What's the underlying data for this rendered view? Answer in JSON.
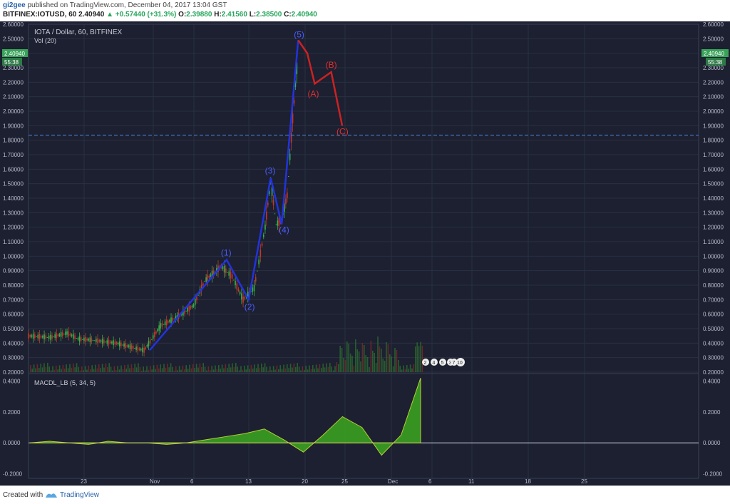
{
  "header": {
    "user": "gi2gee",
    "published": "published on TradingView.com, December 04, 2017 13:04 GST",
    "symbol": "BITFINEX:IOTUSD, 60",
    "price": "2.40940",
    "change": "+0.57440 (+31.3%)",
    "o_label": "O:",
    "o_value": "2.39880",
    "h_label": "H:",
    "h_value": "2.41560",
    "l_label": "L:",
    "l_value": "2.38500",
    "c_label": "C:",
    "c_value": "2.40940"
  },
  "chart_meta": {
    "title": "IOTA / Dollar, 60, BITFINEX",
    "vol_label": "Vol (20)",
    "macd_label": "MACDL_LB (5, 34, 5)",
    "price_tag": "2.40940",
    "countdown_tag": "55:38",
    "badges": [
      "2",
      "4",
      "5",
      "3",
      "7",
      "10"
    ]
  },
  "footer": {
    "created": "Created with",
    "brand": "TradingView"
  },
  "colors": {
    "background": "#1c2030",
    "grid": "#2a3042",
    "wave_blue": "#2233dd",
    "wave_red": "#cc2222",
    "candle_up": "#3ab04a",
    "candle_down": "#c0392b",
    "horizontal_line": "#4a7fd4",
    "macd_fill": "#3aa020"
  },
  "chart_data": [
    {
      "type": "line",
      "title": "IOTA / Dollar, 60, BITFINEX",
      "ylim": [
        0.2,
        2.6
      ],
      "y_ticks": [
        "2.60000",
        "2.50000",
        "2.40000",
        "2.30000",
        "2.20000",
        "2.10000",
        "2.00000",
        "1.90000",
        "1.80000",
        "1.70000",
        "1.60000",
        "1.50000",
        "1.40000",
        "1.30000",
        "1.20000",
        "1.10000",
        "1.00000",
        "0.90000",
        "0.80000",
        "0.70000",
        "0.60000",
        "0.50000",
        "0.40000",
        "0.30000",
        "0.20000"
      ],
      "x_ticks": [
        "23",
        "Nov",
        "6",
        "13",
        "20",
        "25",
        "Dec",
        "6",
        "11",
        "18",
        "25"
      ],
      "horizontal_line": 1.835,
      "price_series": [
        {
          "x": "Oct 16",
          "y": 0.45
        },
        {
          "x": "Oct 20",
          "y": 0.44
        },
        {
          "x": "Oct 23",
          "y": 0.47
        },
        {
          "x": "Oct 25",
          "y": 0.43
        },
        {
          "x": "Oct 28",
          "y": 0.42
        },
        {
          "x": "Nov 1",
          "y": 0.4
        },
        {
          "x": "Nov 4",
          "y": 0.37
        },
        {
          "x": "Nov 6",
          "y": 0.35
        },
        {
          "x": "Nov 9",
          "y": 0.52
        },
        {
          "x": "Nov 12",
          "y": 0.58
        },
        {
          "x": "Nov 15",
          "y": 0.66
        },
        {
          "x": "Nov 17",
          "y": 0.83
        },
        {
          "x": "Nov 20",
          "y": 0.93
        },
        {
          "x": "Nov 22",
          "y": 0.86
        },
        {
          "x": "Nov 24",
          "y": 0.7
        },
        {
          "x": "Nov 26",
          "y": 0.78
        },
        {
          "x": "Nov 28",
          "y": 1.2
        },
        {
          "x": "Nov 29",
          "y": 1.52
        },
        {
          "x": "Nov 30",
          "y": 1.22
        },
        {
          "x": "Dec 1",
          "y": 1.25
        },
        {
          "x": "Dec 2",
          "y": 1.42
        },
        {
          "x": "Dec 3",
          "y": 1.95
        },
        {
          "x": "Dec 4",
          "y": 2.41
        }
      ],
      "elliott_impulse": [
        {
          "label": "",
          "x": "Nov 7",
          "y": 0.35
        },
        {
          "label": "(1)",
          "x": "Nov 21",
          "y": 0.975
        },
        {
          "label": "(2)",
          "x": "Nov 25",
          "y": 0.7
        },
        {
          "label": "(3)",
          "x": "Nov 29",
          "y": 1.54
        },
        {
          "label": "(4)",
          "x": "Dec 1",
          "y": 1.22
        },
        {
          "label": "(5)",
          "x": "Dec 4",
          "y": 2.49
        }
      ],
      "elliott_correction": [
        {
          "label": "",
          "x": "Dec 4",
          "y": 2.49
        },
        {
          "label": "",
          "x": "Dec 5",
          "y": 2.4
        },
        {
          "label": "(A)",
          "x": "Dec 7",
          "y": 2.19
        },
        {
          "label": "(B)",
          "x": "Dec 10",
          "y": 2.27
        },
        {
          "label": "(C)",
          "x": "Dec 12",
          "y": 1.9
        }
      ]
    },
    {
      "type": "area",
      "title": "MACDL_LB (5, 34, 5)",
      "ylim": [
        -0.23,
        0.44
      ],
      "y_ticks": [
        "0.4000",
        "0.2000",
        "0.0000",
        "-0.2000"
      ],
      "series": [
        {
          "values": [
            0.0,
            0.01,
            0.0,
            -0.01,
            0.01,
            0.0,
            0.0,
            -0.01,
            0.0,
            0.02,
            0.04,
            0.06,
            0.09,
            0.02,
            -0.06,
            0.05,
            0.17,
            0.1,
            -0.08,
            0.05,
            0.42
          ]
        }
      ]
    }
  ]
}
